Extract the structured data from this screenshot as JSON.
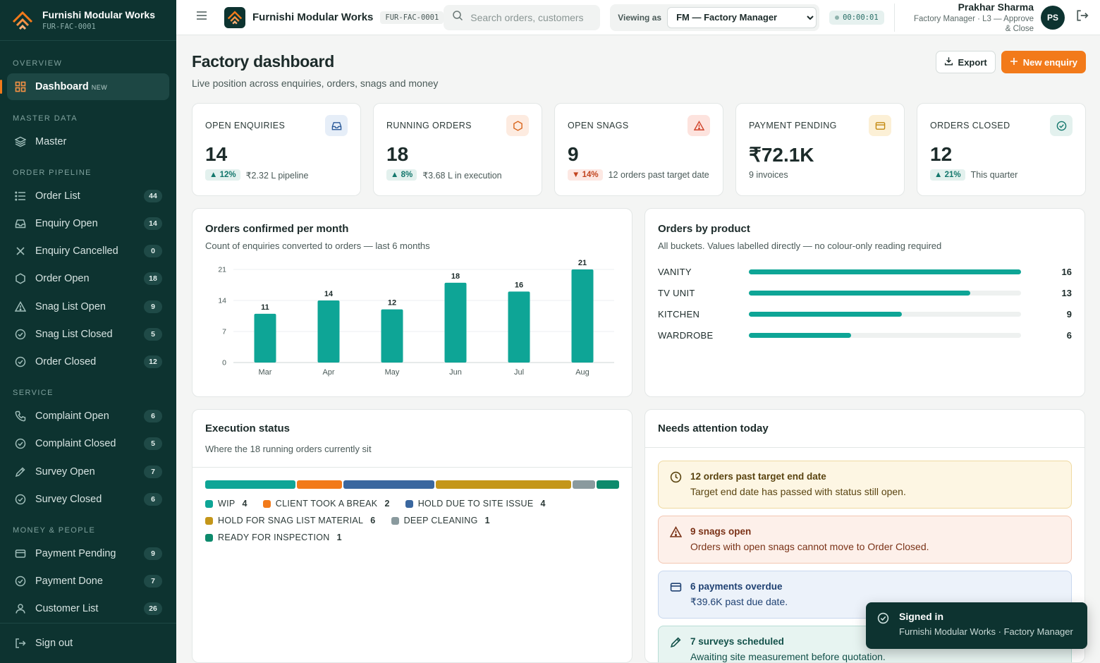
{
  "brand": {
    "name": "Furnishi Modular Works",
    "code": "FUR-FAC-0001"
  },
  "sidebar": {
    "sections": [
      {
        "label": "OVERVIEW"
      },
      {
        "label": "MASTER DATA"
      },
      {
        "label": "ORDER PIPELINE"
      },
      {
        "label": "SERVICE"
      },
      {
        "label": "MONEY & PEOPLE"
      }
    ],
    "dashboard": {
      "label": "Dashboard",
      "tag": "NEW"
    },
    "master": {
      "label": "Master"
    },
    "items": [
      {
        "label": "Order List",
        "count": "44"
      },
      {
        "label": "Enquiry Open",
        "count": "14"
      },
      {
        "label": "Enquiry Cancelled",
        "count": "0"
      },
      {
        "label": "Order Open",
        "count": "18"
      },
      {
        "label": "Snag List Open",
        "count": "9"
      },
      {
        "label": "Snag List Closed",
        "count": "5"
      },
      {
        "label": "Order Closed",
        "count": "12"
      },
      {
        "label": "Complaint Open",
        "count": "6"
      },
      {
        "label": "Complaint Closed",
        "count": "5"
      },
      {
        "label": "Survey Open",
        "count": "7"
      },
      {
        "label": "Survey Closed",
        "count": "6"
      },
      {
        "label": "Payment Pending",
        "count": "9"
      },
      {
        "label": "Payment Done",
        "count": "7"
      },
      {
        "label": "Customer List",
        "count": "26"
      }
    ],
    "signout": "Sign out"
  },
  "topbar": {
    "name": "Furnishi Modular Works",
    "code": "FUR-FAC-0001",
    "search_placeholder": "Search orders, customers",
    "viewas_label": "Viewing as",
    "viewas_value": "FM — Factory Manager",
    "timer": "00:00:01",
    "user_name": "Prakhar Sharma",
    "user_role": "Factory Manager · L3 — Approve & Close",
    "avatar": "PS"
  },
  "page": {
    "title": "Factory dashboard",
    "subtitle": "Live position across enquiries, orders, snags and money",
    "export": "Export",
    "new_enquiry": "New enquiry"
  },
  "kpis": [
    {
      "label": "OPEN ENQUIRIES",
      "value": "14",
      "delta": "▲ 12%",
      "dir": "up",
      "note": "₹2.32 L pipeline",
      "icon": "inbox-icon",
      "tint": "#e6eef8",
      "color": "#2c5b9a"
    },
    {
      "label": "RUNNING ORDERS",
      "value": "18",
      "delta": "▲ 8%",
      "dir": "up",
      "note": "₹3.68 L in execution",
      "icon": "hexagon-icon",
      "tint": "#fdebe0",
      "color": "#d9641a"
    },
    {
      "label": "OPEN SNAGS",
      "value": "9",
      "delta": "▼ 14%",
      "dir": "down",
      "note": "12 orders past target date",
      "icon": "warning-icon",
      "tint": "#fde3de",
      "color": "#d0432a"
    },
    {
      "label": "PAYMENT PENDING",
      "value": "₹72.1K",
      "delta": "",
      "dir": "",
      "note": "9 invoices",
      "icon": "card-icon",
      "tint": "#fcf0d6",
      "color": "#c48a12"
    },
    {
      "label": "ORDERS CLOSED",
      "value": "12",
      "delta": "▲ 21%",
      "dir": "up",
      "note": "This quarter",
      "icon": "check-circle-icon",
      "tint": "#e3f1ee",
      "color": "#13776c"
    }
  ],
  "bar_card": {
    "title": "Orders confirmed per month",
    "subtitle": "Count of enquiries converted to orders — last 6 months"
  },
  "chart_data": {
    "type": "bar",
    "categories": [
      "Mar",
      "Apr",
      "May",
      "Jun",
      "Jul",
      "Aug"
    ],
    "values": [
      11,
      14,
      12,
      18,
      16,
      21
    ],
    "yticks": [
      0,
      7,
      14,
      21
    ],
    "ylim": [
      0,
      21
    ],
    "color": "#0ea596"
  },
  "product_card": {
    "title": "Orders by product",
    "subtitle": "All buckets. Values labelled directly — no colour-only reading required",
    "items": [
      {
        "name": "VANITY",
        "value": 16
      },
      {
        "name": "TV UNIT",
        "value": 13
      },
      {
        "name": "KITCHEN",
        "value": 9
      },
      {
        "name": "WARDROBE",
        "value": 6
      }
    ],
    "max": 16
  },
  "exec_card": {
    "title": "Execution status",
    "subtitle": "Where the 18 running orders currently sit",
    "segments": [
      {
        "name": "WIP",
        "value": 4,
        "color": "#0ea596"
      },
      {
        "name": "CLIENT TOOK A BREAK",
        "value": 2,
        "color": "#f27a1a"
      },
      {
        "name": "HOLD DUE TO SITE ISSUE",
        "value": 4,
        "color": "#3a679f"
      },
      {
        "name": "HOLD FOR SNAG LIST MATERIAL",
        "value": 6,
        "color": "#c4961a"
      },
      {
        "name": "DEEP CLEANING",
        "value": 1,
        "color": "#8a9a9e"
      },
      {
        "name": "READY FOR INSPECTION",
        "value": 1,
        "color": "#0d8a6c"
      }
    ]
  },
  "attention": {
    "title": "Needs attention today",
    "alerts": [
      {
        "title": "12 orders past target end date",
        "desc": "Target end date has passed with status still open."
      },
      {
        "title": "9 snags open",
        "desc": "Orders with open snags cannot move to Order Closed."
      },
      {
        "title": "6 payments overdue",
        "desc": "₹39.6K past due date."
      },
      {
        "title": "7 surveys scheduled",
        "desc": "Awaiting site measurement before quotation."
      }
    ]
  },
  "toast": {
    "title": "Signed in",
    "desc": "Furnishi Modular Works · Factory Manager"
  }
}
